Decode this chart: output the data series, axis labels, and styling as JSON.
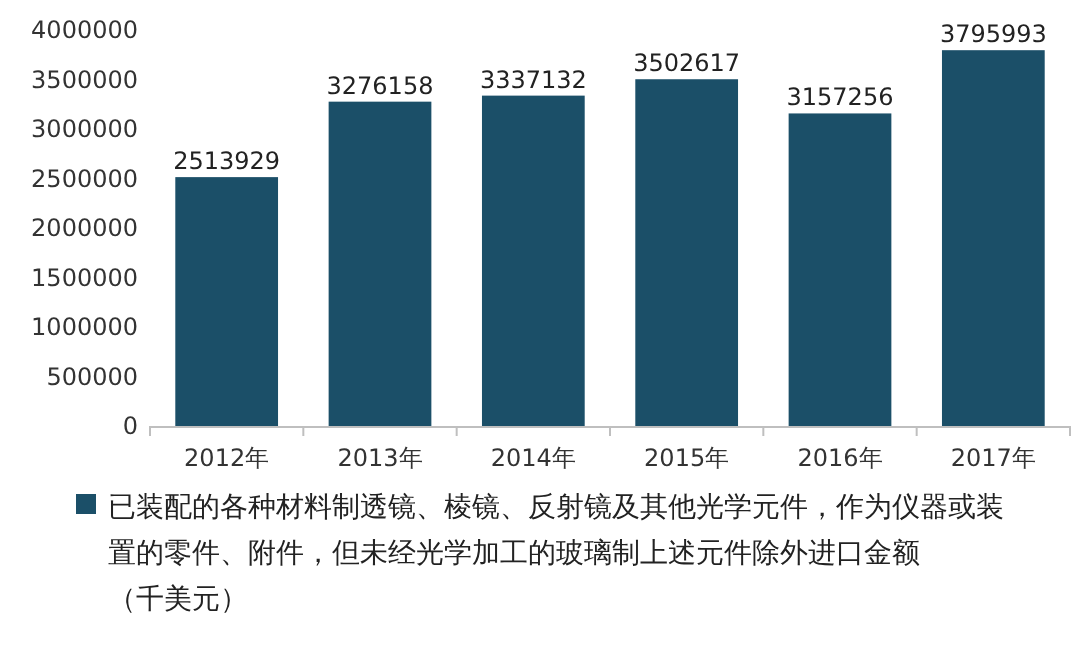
{
  "chart_data": {
    "type": "bar",
    "categories": [
      "2012年",
      "2013年",
      "2014年",
      "2015年",
      "2016年",
      "2017年"
    ],
    "series": [
      {
        "name": "已装配的各种材料制透镜、棱镜、反射镜及其他光学元件，作为仪器或装置的零件、附件，但未经光学加工的玻璃制上述元件除外进口金额（千美元）",
        "color": "#1b4f68",
        "values": [
          2513929,
          3276158,
          3337132,
          3502617,
          3157256,
          3795993
        ]
      }
    ],
    "ylim": [
      0,
      4000000
    ],
    "yticks": [
      0,
      500000,
      1000000,
      1500000,
      2000000,
      2500000,
      3000000,
      3500000,
      4000000
    ],
    "data_labels": true,
    "legend": "bottom"
  }
}
